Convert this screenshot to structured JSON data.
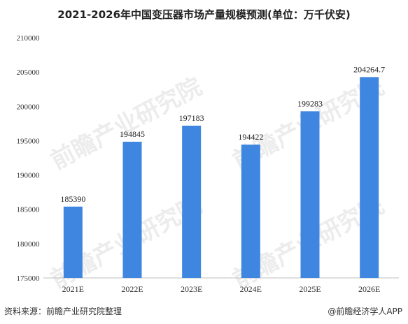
{
  "chart_data": {
    "type": "bar",
    "title": "2021-2026年中国变压器市场产量规模预测(单位：万千伏安)",
    "categories": [
      "2021E",
      "2022E",
      "2023E",
      "2024E",
      "2025E",
      "2026E"
    ],
    "values": [
      185390,
      194845,
      197183,
      194422,
      199283,
      204264.7
    ],
    "data_labels": [
      "185390",
      "194845",
      "197183",
      "194422",
      "199283",
      "204264.7"
    ],
    "ylim": [
      175000,
      210000
    ],
    "yticks": [
      175000,
      180000,
      185000,
      190000,
      195000,
      200000,
      205000,
      210000
    ],
    "ytick_labels": [
      "175000",
      "180000",
      "185000",
      "190000",
      "195000",
      "200000",
      "205000",
      "210000"
    ],
    "grid": false,
    "bar_color": "#3f86e0"
  },
  "footer": {
    "source": "资料来源：前瞻产业研究院整理",
    "credit": "@前瞻经济学人APP"
  },
  "watermark": "前瞻产业研究院"
}
